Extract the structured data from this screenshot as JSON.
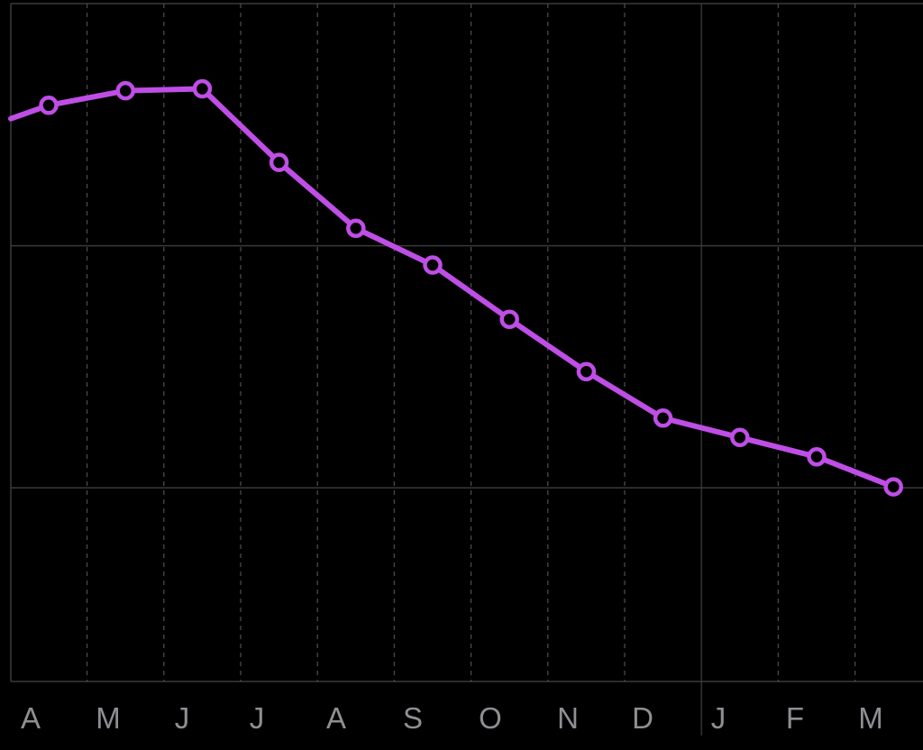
{
  "chart_data": {
    "type": "line",
    "title": "",
    "xlabel": "",
    "ylabel": "",
    "categories": [
      "A",
      "M",
      "J",
      "J",
      "A",
      "S",
      "O",
      "N",
      "D",
      "J",
      "F",
      "M"
    ],
    "series": [
      {
        "values": [
          89.5,
          91.0,
          91.2,
          83.6,
          76.8,
          73.0,
          67.4,
          62.0,
          57.2,
          55.2,
          53.2,
          50.1
        ]
      }
    ],
    "leading_value": 88.4,
    "ylim": [
      30,
      100
    ],
    "y_gridlines": [
      50,
      75,
      100
    ],
    "grid": true,
    "colors": {
      "background": "#000000",
      "line": "#bf4ee6",
      "marker_fill": "#000000",
      "grid_solid": "#3a3a3c",
      "grid_dashed": "#4a4a4c",
      "tick_label": "#8e8e93"
    }
  }
}
